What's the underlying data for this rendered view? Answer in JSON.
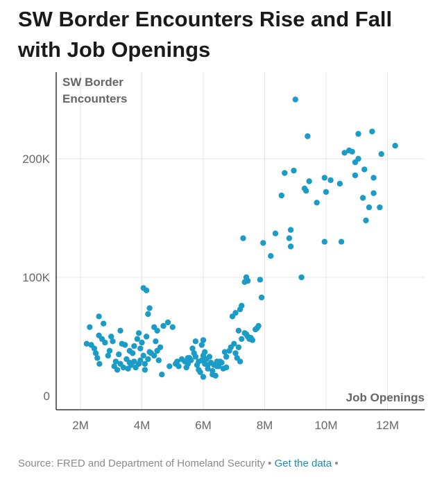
{
  "chart_data": {
    "type": "scatter",
    "title": "SW Border Encounters Rise and Fall with Job Openings",
    "ylabel": "SW Border Encounters",
    "xlabel": "Job Openings",
    "xlim": [
      1.5,
      13.0
    ],
    "ylim": [
      -12,
      272
    ],
    "x_ticks": [
      {
        "value": 2,
        "label": "2M"
      },
      {
        "value": 4,
        "label": "4M"
      },
      {
        "value": 6,
        "label": "6M"
      },
      {
        "value": 8,
        "label": "8M"
      },
      {
        "value": 10,
        "label": "10M"
      },
      {
        "value": 12,
        "label": "12M"
      }
    ],
    "y_ticks": [
      {
        "value": 0,
        "label": "0"
      },
      {
        "value": 100,
        "label": "100K"
      },
      {
        "value": 200,
        "label": "200K"
      }
    ],
    "grid": true,
    "point_color": "#1a9cc6",
    "points": [
      [
        2.2,
        44
      ],
      [
        2.3,
        58
      ],
      [
        2.35,
        43
      ],
      [
        2.45,
        40
      ],
      [
        2.5,
        36
      ],
      [
        2.55,
        32
      ],
      [
        2.6,
        67
      ],
      [
        2.6,
        51
      ],
      [
        2.62,
        27
      ],
      [
        2.7,
        48
      ],
      [
        2.75,
        61
      ],
      [
        2.8,
        45
      ],
      [
        2.9,
        34
      ],
      [
        2.95,
        38
      ],
      [
        3.0,
        50
      ],
      [
        3.05,
        46
      ],
      [
        3.1,
        25
      ],
      [
        3.15,
        29
      ],
      [
        3.2,
        22
      ],
      [
        3.25,
        35
      ],
      [
        3.3,
        55
      ],
      [
        3.3,
        27
      ],
      [
        3.35,
        44
      ],
      [
        3.4,
        24
      ],
      [
        3.45,
        43
      ],
      [
        3.5,
        31
      ],
      [
        3.55,
        23
      ],
      [
        3.6,
        28
      ],
      [
        3.65,
        26
      ],
      [
        3.7,
        36
      ],
      [
        3.75,
        29
      ],
      [
        3.8,
        24
      ],
      [
        3.85,
        48
      ],
      [
        3.9,
        27
      ],
      [
        3.95,
        40
      ],
      [
        3.95,
        30
      ],
      [
        4.0,
        45
      ],
      [
        4.05,
        34
      ],
      [
        4.1,
        22
      ],
      [
        4.1,
        27
      ],
      [
        4.15,
        50
      ],
      [
        4.2,
        31
      ],
      [
        4.25,
        37
      ],
      [
        4.3,
        36
      ],
      [
        4.4,
        34
      ],
      [
        4.45,
        46
      ],
      [
        4.5,
        38
      ],
      [
        4.55,
        30
      ],
      [
        3.9,
        53
      ],
      [
        3.75,
        42
      ],
      [
        3.6,
        38
      ],
      [
        4.05,
        91
      ],
      [
        4.15,
        89
      ],
      [
        4.2,
        69
      ],
      [
        4.25,
        74
      ],
      [
        4.4,
        58
      ],
      [
        4.5,
        55
      ],
      [
        4.6,
        41
      ],
      [
        4.65,
        18
      ],
      [
        4.7,
        59
      ],
      [
        4.85,
        62
      ],
      [
        4.9,
        25
      ],
      [
        5.0,
        58
      ],
      [
        5.1,
        27
      ],
      [
        5.15,
        29
      ],
      [
        5.2,
        25
      ],
      [
        5.3,
        31
      ],
      [
        5.4,
        29
      ],
      [
        5.45,
        24
      ],
      [
        5.5,
        27
      ],
      [
        5.55,
        32
      ],
      [
        5.6,
        30
      ],
      [
        5.7,
        36
      ],
      [
        5.75,
        33
      ],
      [
        5.8,
        26
      ],
      [
        5.85,
        22
      ],
      [
        5.9,
        20
      ],
      [
        5.95,
        30
      ],
      [
        6.0,
        16
      ],
      [
        6.0,
        34
      ],
      [
        6.05,
        27
      ],
      [
        6.1,
        31
      ],
      [
        6.15,
        23
      ],
      [
        6.2,
        33
      ],
      [
        6.25,
        28
      ],
      [
        6.3,
        21
      ],
      [
        6.35,
        26
      ],
      [
        6.4,
        17
      ],
      [
        6.45,
        29
      ],
      [
        6.5,
        25
      ],
      [
        6.6,
        28
      ],
      [
        6.7,
        37
      ],
      [
        6.75,
        33
      ],
      [
        6.85,
        38
      ],
      [
        6.9,
        41
      ],
      [
        7.0,
        44
      ],
      [
        7.05,
        36
      ],
      [
        7.1,
        32
      ],
      [
        7.15,
        41
      ],
      [
        7.2,
        29
      ],
      [
        7.25,
        48
      ],
      [
        7.35,
        53
      ],
      [
        7.4,
        52
      ],
      [
        7.45,
        50
      ],
      [
        7.5,
        48
      ],
      [
        7.55,
        49
      ],
      [
        7.6,
        47
      ],
      [
        5.5,
        32
      ],
      [
        5.65,
        40
      ],
      [
        5.75,
        46
      ],
      [
        5.85,
        29
      ],
      [
        5.95,
        43
      ],
      [
        6.0,
        47
      ],
      [
        6.05,
        37
      ],
      [
        6.15,
        26
      ],
      [
        6.3,
        18
      ],
      [
        6.45,
        25
      ],
      [
        6.55,
        29
      ],
      [
        6.65,
        23
      ],
      [
        6.75,
        24
      ],
      [
        6.95,
        67
      ],
      [
        7.05,
        70
      ],
      [
        7.15,
        55
      ],
      [
        7.2,
        73
      ],
      [
        7.25,
        76
      ],
      [
        7.35,
        96
      ],
      [
        7.4,
        100
      ],
      [
        7.45,
        97
      ],
      [
        7.3,
        133
      ],
      [
        7.7,
        56
      ],
      [
        7.75,
        57
      ],
      [
        7.8,
        59
      ],
      [
        7.85,
        98
      ],
      [
        7.9,
        83
      ],
      [
        7.95,
        129
      ],
      [
        8.2,
        118
      ],
      [
        8.35,
        137
      ],
      [
        8.55,
        169
      ],
      [
        8.65,
        188
      ],
      [
        8.8,
        133
      ],
      [
        8.85,
        126
      ],
      [
        8.85,
        140
      ],
      [
        8.95,
        190
      ],
      [
        9.0,
        250
      ],
      [
        9.2,
        100
      ],
      [
        9.3,
        175
      ],
      [
        9.35,
        173
      ],
      [
        9.4,
        219
      ],
      [
        9.45,
        181
      ],
      [
        9.7,
        163
      ],
      [
        9.95,
        130
      ],
      [
        9.95,
        184
      ],
      [
        10.0,
        172
      ],
      [
        10.15,
        182
      ],
      [
        10.45,
        179
      ],
      [
        10.5,
        130
      ],
      [
        10.6,
        205
      ],
      [
        10.75,
        207
      ],
      [
        10.85,
        206
      ],
      [
        10.95,
        186
      ],
      [
        10.95,
        197
      ],
      [
        11.05,
        200
      ],
      [
        11.05,
        221
      ],
      [
        11.2,
        167
      ],
      [
        11.25,
        191
      ],
      [
        11.3,
        148
      ],
      [
        11.4,
        159
      ],
      [
        11.5,
        223
      ],
      [
        11.55,
        184
      ],
      [
        11.55,
        171
      ],
      [
        11.75,
        159
      ],
      [
        11.8,
        204
      ],
      [
        12.25,
        211
      ]
    ]
  },
  "source": {
    "text": "Source: FRED and Department of Homeland Security",
    "separator": "•",
    "link_label": "Get the data"
  }
}
